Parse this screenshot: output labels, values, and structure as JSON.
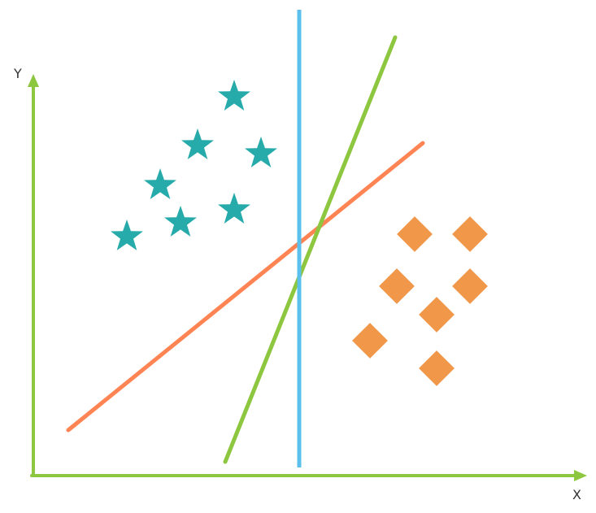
{
  "colors": {
    "axis": "#8DC63F",
    "star": "#26AAAA",
    "diamond": "#F0974A",
    "vertical_line": "#5BC0EB",
    "green_line": "#8DC63F",
    "orange_line": "#FF8454"
  },
  "axes": {
    "x_label": "X",
    "y_label": "Y"
  },
  "class_a": {
    "marker": "star-icon",
    "count": 7
  },
  "class_b": {
    "marker": "diamond-icon",
    "count": 7
  },
  "separators": {
    "count": 3
  }
}
